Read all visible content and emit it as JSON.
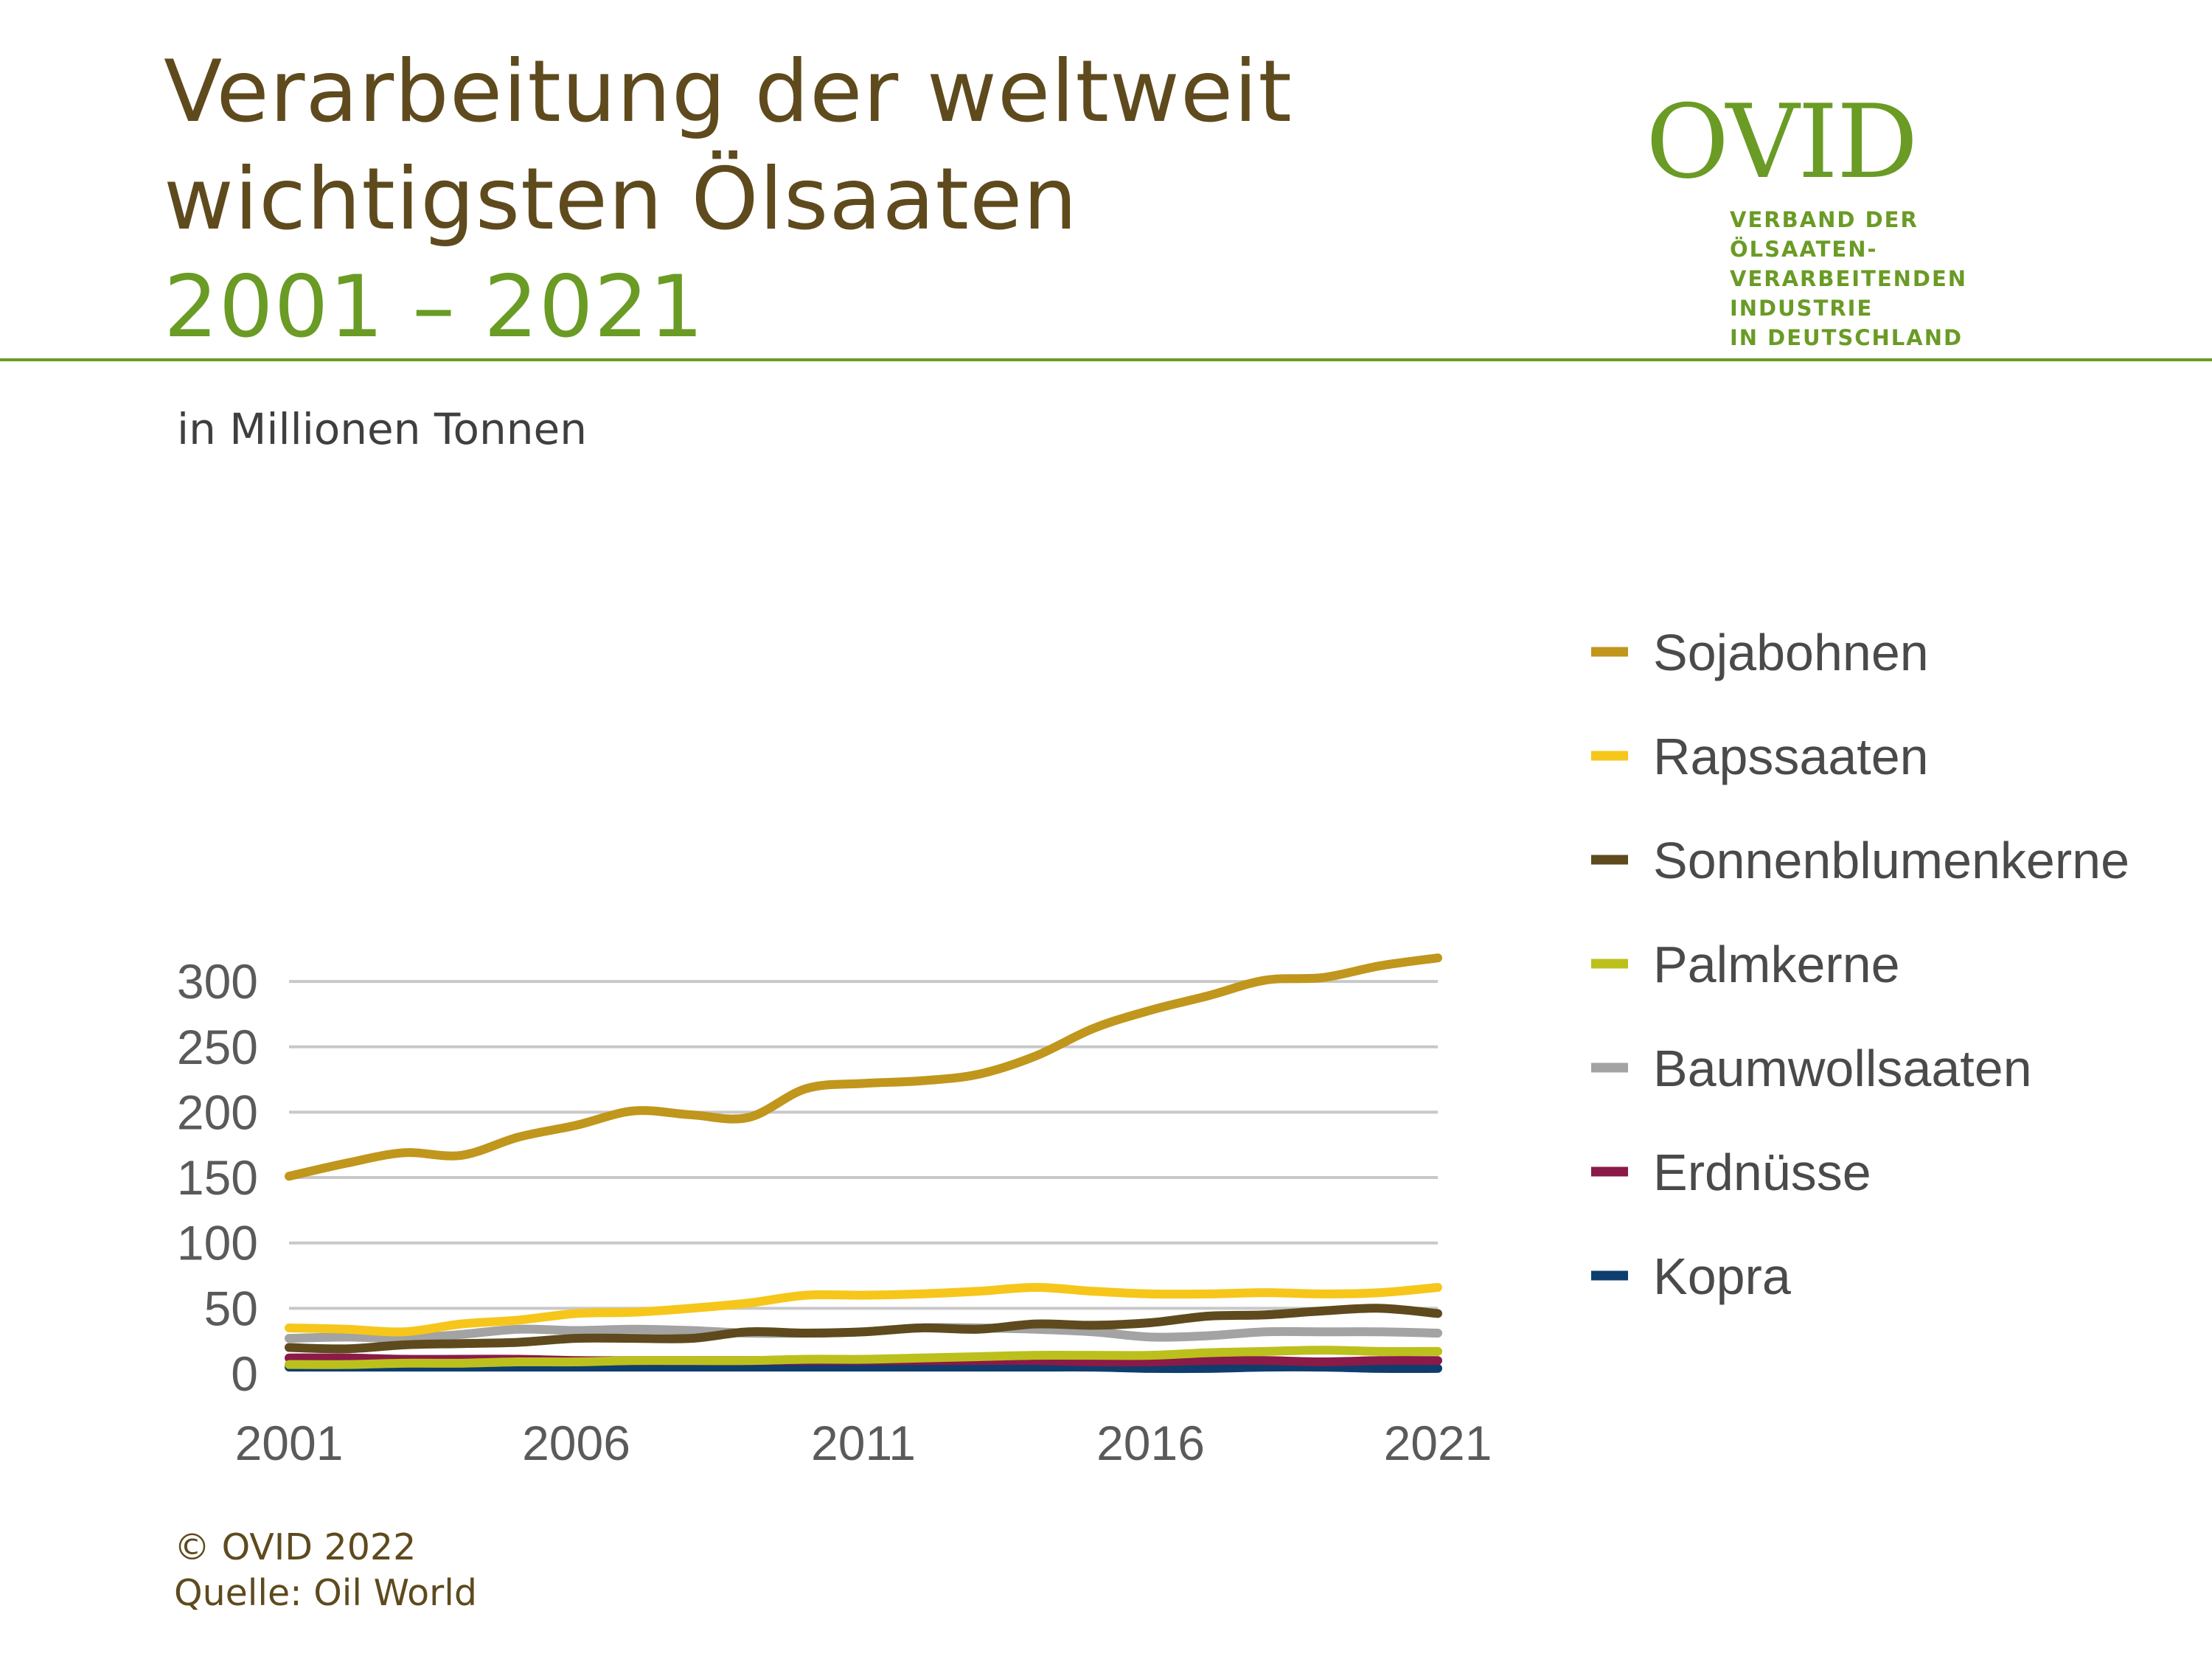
{
  "header": {
    "title_line1": "Verarbeitung der weltweit",
    "title_line2": "wichtigsten Ölsaaten",
    "title_line3": "2001 – 2021"
  },
  "logo": {
    "name": "OVID",
    "sub1": "VERBAND DER ÖLSAATEN-",
    "sub2": "VERARBEITENDEN INDUSTRIE",
    "sub3": "IN DEUTSCHLAND"
  },
  "footer": {
    "copyright": "© OVID 2022",
    "source": "Quelle: Oil World"
  },
  "chart_data": {
    "type": "line",
    "ylabel": "in Millionen Tonnen",
    "ylim": [
      0,
      320
    ],
    "yticks": [
      "0",
      "50",
      "100",
      "150",
      "200",
      "250",
      "300"
    ],
    "x": [
      2001,
      2002,
      2003,
      2004,
      2005,
      2006,
      2007,
      2008,
      2009,
      2010,
      2011,
      2012,
      2013,
      2014,
      2015,
      2016,
      2017,
      2018,
      2019,
      2020,
      2021
    ],
    "xticks": [
      "2001",
      "2006",
      "2011",
      "2016",
      "2021"
    ],
    "grid": true,
    "legend_position": "right",
    "series": [
      {
        "name": "Sojabohnen",
        "color": "#c0961c",
        "values": [
          151,
          161,
          169,
          167,
          181,
          190,
          201,
          198,
          196,
          218,
          222,
          224,
          229,
          243,
          264,
          278,
          289,
          301,
          303,
          312,
          318
        ]
      },
      {
        "name": "Rapssaaten",
        "color": "#f6c61a",
        "values": [
          35,
          34,
          32,
          38,
          41,
          46,
          47,
          50,
          54,
          60,
          60,
          61,
          63,
          66,
          63,
          61,
          61,
          62,
          61,
          62,
          66
        ]
      },
      {
        "name": "Sonnenblumenkerne",
        "color": "#5e4a1d",
        "values": [
          20,
          19,
          22,
          23,
          24,
          27,
          27,
          27,
          32,
          31,
          32,
          35,
          34,
          38,
          37,
          39,
          44,
          45,
          48,
          50,
          46
        ]
      },
      {
        "name": "Palmkerne",
        "color": "#bcc01c",
        "values": [
          7,
          7,
          8,
          8,
          9,
          9,
          10,
          10,
          10,
          11,
          11,
          12,
          13,
          14,
          14,
          14,
          16,
          17,
          18,
          17,
          17
        ]
      },
      {
        "name": "Baumwollsaaten",
        "color": "#a3a3a3",
        "values": [
          27,
          28,
          27,
          30,
          34,
          33,
          34,
          33,
          31,
          31,
          32,
          35,
          35,
          34,
          32,
          28,
          29,
          32,
          32,
          32,
          31
        ]
      },
      {
        "name": "Erdnüsse",
        "color": "#8a1a48",
        "values": [
          12,
          12,
          11,
          11,
          11,
          10,
          10,
          10,
          10,
          10,
          10,
          10,
          10,
          10,
          9,
          9,
          10,
          10,
          9,
          10,
          10
        ]
      },
      {
        "name": "Kopra",
        "color": "#0e3d6e",
        "values": [
          5,
          5,
          5,
          5,
          5,
          5,
          5,
          5,
          5,
          5,
          5,
          5,
          5,
          5,
          5,
          4,
          4,
          5,
          5,
          4,
          4
        ]
      }
    ]
  }
}
